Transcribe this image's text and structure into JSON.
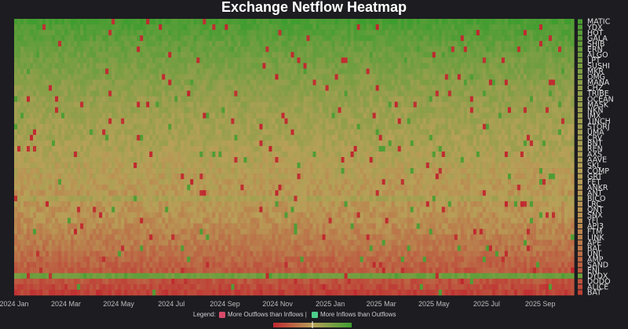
{
  "chart_data": {
    "type": "heatmap",
    "title": "Exchange Netflow Heatmap",
    "xlabel": "",
    "ylabel": "",
    "x_range": [
      "2024-01-01",
      "2025-10-10"
    ],
    "x_ticks": [
      "2024 Jan",
      "2024 Mar",
      "2024 May",
      "2024 Jul",
      "2024 Sep",
      "2024 Nov",
      "2025 Jan",
      "2025 Mar",
      "2025 May",
      "2025 Jul",
      "2025 Sep"
    ],
    "y_categories": [
      "MATIC",
      "YDX",
      "HOT",
      "GALA",
      "SHIB",
      "ERN",
      "ALGO",
      "LPT",
      "SUSHI",
      "MKR",
      "OMG",
      "MANA",
      "CHZ",
      "TRIBE",
      "OCEAN",
      "MASK",
      "NKN",
      "IMX",
      "1INCH",
      "STORJ",
      "UMA",
      "CRV",
      "BNT",
      "REN",
      "AXS",
      "AAVE",
      "SKL",
      "COMP",
      "GRT",
      "FET",
      "ANKR",
      "ANT",
      "BICO",
      "LRC",
      "QNT",
      "SNX",
      "YFI",
      "API3",
      "FTM",
      "LINK",
      "APE",
      "BAL",
      "UNI",
      "AMP",
      "SAND",
      "ENJ",
      "DYDX",
      "DODO",
      "ALICE",
      "BAT"
    ],
    "y_row_means": [
      0.9,
      0.84,
      0.78,
      0.74,
      0.66,
      0.62,
      0.58,
      0.52,
      0.5,
      0.46,
      0.42,
      0.38,
      0.34,
      0.32,
      0.28,
      0.26,
      0.24,
      0.22,
      0.2,
      0.18,
      0.16,
      0.14,
      0.12,
      0.1,
      0.08,
      0.06,
      0.04,
      0.02,
      0.0,
      -0.02,
      -0.04,
      -0.06,
      0.1,
      -0.08,
      -0.1,
      -0.12,
      -0.14,
      -0.18,
      -0.22,
      -0.26,
      -0.3,
      -0.34,
      -0.4,
      -0.46,
      -0.5,
      -0.56,
      0.6,
      -0.62,
      -0.7,
      -0.78
    ],
    "colorscale": [
      "#c0262e",
      "#b8a058",
      "#3e9d2f"
    ],
    "value_range": [
      -1,
      1
    ],
    "colorbar": false
  },
  "legend": {
    "prefix": "Legend:",
    "items": [
      {
        "label": "More Outflows than Inflows |",
        "color": "#d64a6a"
      },
      {
        "label": "More Inflows than Outflows",
        "color": "#4bd08a"
      }
    ],
    "bar_colors": [
      "#c0262e",
      "#b8a058",
      "#3e9d2f"
    ]
  },
  "colors": {
    "background": "#1c1c21",
    "accent_green": "#3e9d2f",
    "accent_red": "#c0262e"
  }
}
